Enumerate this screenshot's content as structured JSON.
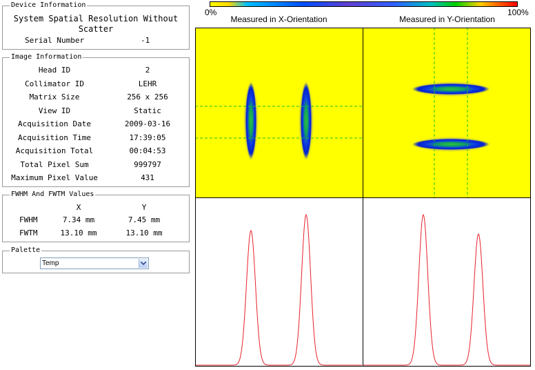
{
  "device_information": {
    "legend": "Device Information",
    "description_line1": "System Spatial Resolution Without",
    "description_line2": "Scatter",
    "serial_label": "Serial Number",
    "serial_value": "-1"
  },
  "image_information": {
    "legend": "Image Information",
    "rows": [
      {
        "label": "Head ID",
        "value": "2"
      },
      {
        "label": "Collimator ID",
        "value": "LEHR"
      },
      {
        "label": "Matrix Size",
        "value": "256 x 256"
      },
      {
        "label": "View ID",
        "value": "Static"
      },
      {
        "label": "Acquisition Date",
        "value": "2009-03-16"
      },
      {
        "label": "Acquisition Time",
        "value": "17:39:05"
      },
      {
        "label": "Acquisition Total",
        "value": "00:04:53"
      },
      {
        "label": "Total Pixel Sum",
        "value": "999797"
      },
      {
        "label": "Maximum Pixel Value",
        "value": "431"
      }
    ]
  },
  "fwhm": {
    "legend": "FWHM And FWTM Values",
    "col_x": "X",
    "col_y": "Y",
    "rows": [
      {
        "label": "FWHM",
        "x": "7.34 mm",
        "y": "7.45 mm"
      },
      {
        "label": "FWTM",
        "x": "13.10 mm",
        "y": "13.10 mm"
      }
    ]
  },
  "palette": {
    "legend": "Palette",
    "selected": "Temp"
  },
  "colorbar": {
    "min_label": "0%",
    "max_label": "100%"
  },
  "panels": {
    "x_title": "Measured in X-Orientation",
    "y_title": "Measured in Y-Orientation"
  },
  "colors": {
    "background_yellow": "#ffff00",
    "profile_red": "#e8202a",
    "crosshair_green": "#20c020"
  }
}
